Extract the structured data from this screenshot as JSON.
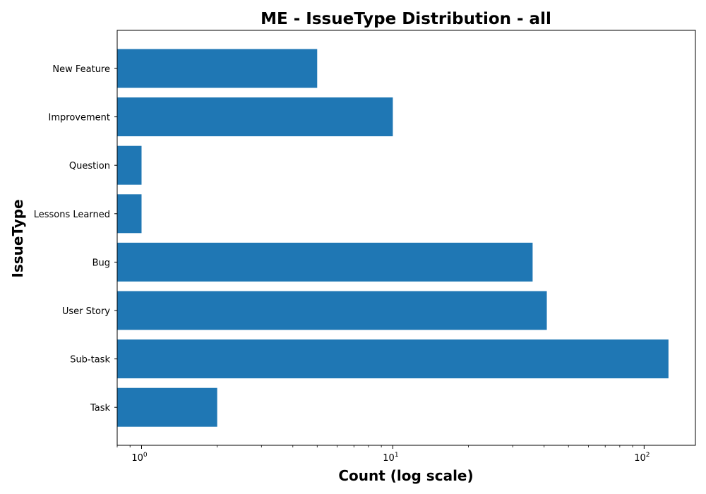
{
  "chart_data": {
    "type": "bar",
    "orientation": "horizontal",
    "title": "ME - IssueType Distribution - all",
    "xlabel": "Count (log scale)",
    "ylabel": "IssueType",
    "xscale": "log",
    "xlim": [
      0.8,
      160
    ],
    "xticks": [
      {
        "value": 1,
        "base": "10",
        "exp": "0"
      },
      {
        "value": 10,
        "base": "10",
        "exp": "1"
      },
      {
        "value": 100,
        "base": "10",
        "exp": "2"
      }
    ],
    "categories": [
      "New Feature",
      "Improvement",
      "Question",
      "Lessons Learned",
      "Bug",
      "User Story",
      "Sub-task",
      "Task"
    ],
    "values": [
      5,
      10,
      1,
      1,
      36,
      41,
      125,
      2
    ],
    "bar_color": "#1f77b4",
    "grid": false
  }
}
